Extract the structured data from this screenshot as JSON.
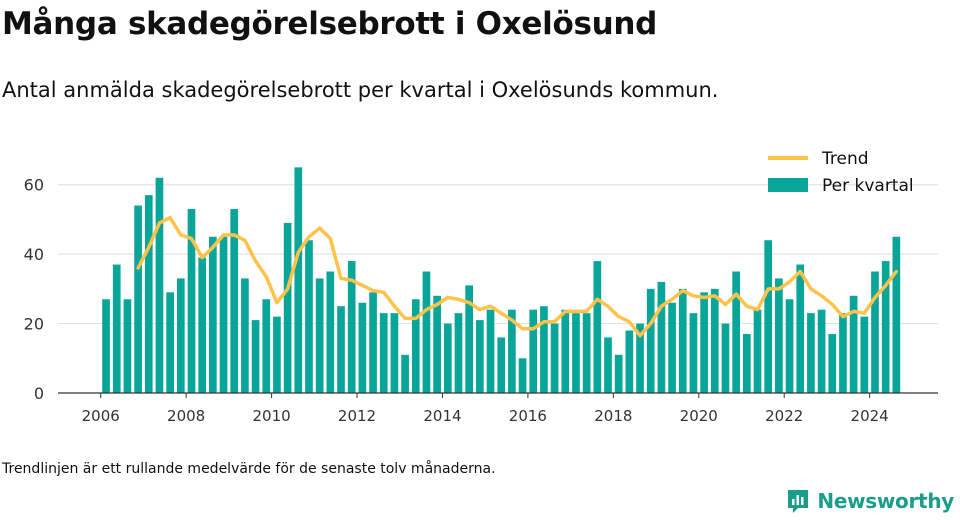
{
  "title": "Många skadegörelsebrott i Oxelösund",
  "subtitle": "Antal anmälda skadegörelsebrott per kvartal i Oxelösunds kommun.",
  "footnote": "Trendlinjen är ett rullande medelvärde för de senaste tolv månaderna.",
  "brand": {
    "name": "Newsworthy",
    "color": "#199e8a"
  },
  "colors": {
    "bar": "#0aa599",
    "trend": "#ffc24a",
    "grid": "#dddddd",
    "axis": "#333333",
    "text": "#333333"
  },
  "chart_data": {
    "type": "bar",
    "x_axis": {
      "type": "time",
      "range": [
        "2005.0",
        "2025.6"
      ],
      "ticks": [
        "2006",
        "2008",
        "2010",
        "2012",
        "2014",
        "2016",
        "2018",
        "2020",
        "2022",
        "2024"
      ]
    },
    "y_axis": {
      "range": [
        0,
        70
      ],
      "ticks": [
        0,
        20,
        40,
        60
      ]
    },
    "grid": true,
    "legend": {
      "placement": "top-right",
      "entries": [
        "Trend",
        "Per kvartal"
      ]
    },
    "categories": [
      "2006 Q1",
      "2006 Q2",
      "2006 Q3",
      "2006 Q4",
      "2007 Q1",
      "2007 Q2",
      "2007 Q3",
      "2007 Q4",
      "2008 Q1",
      "2008 Q2",
      "2008 Q3",
      "2008 Q4",
      "2009 Q1",
      "2009 Q2",
      "2009 Q3",
      "2009 Q4",
      "2010 Q1",
      "2010 Q2",
      "2010 Q3",
      "2010 Q4",
      "2011 Q1",
      "2011 Q2",
      "2011 Q3",
      "2011 Q4",
      "2012 Q1",
      "2012 Q2",
      "2012 Q3",
      "2012 Q4",
      "2013 Q1",
      "2013 Q2",
      "2013 Q3",
      "2013 Q4",
      "2014 Q1",
      "2014 Q2",
      "2014 Q3",
      "2014 Q4",
      "2015 Q1",
      "2015 Q2",
      "2015 Q3",
      "2015 Q4",
      "2016 Q1",
      "2016 Q2",
      "2016 Q3",
      "2016 Q4",
      "2017 Q1",
      "2017 Q2",
      "2017 Q3",
      "2017 Q4",
      "2018 Q1",
      "2018 Q2",
      "2018 Q3",
      "2018 Q4",
      "2019 Q1",
      "2019 Q2",
      "2019 Q3",
      "2019 Q4",
      "2020 Q1",
      "2020 Q2",
      "2020 Q3",
      "2020 Q4",
      "2021 Q1",
      "2021 Q2",
      "2021 Q3",
      "2021 Q4",
      "2022 Q1",
      "2022 Q2",
      "2022 Q3",
      "2022 Q4",
      "2023 Q1",
      "2023 Q2",
      "2023 Q3",
      "2023 Q4",
      "2024 Q1",
      "2024 Q2",
      "2024 Q3"
    ],
    "series": [
      {
        "name": "Per kvartal",
        "type": "bar",
        "values": [
          27,
          37,
          27,
          54,
          57,
          62,
          29,
          33,
          53,
          39,
          45,
          45,
          53,
          33,
          21,
          27,
          22,
          49,
          65,
          44,
          33,
          35,
          25,
          38,
          26,
          29,
          23,
          23,
          11,
          27,
          35,
          28,
          20,
          23,
          31,
          21,
          24,
          16,
          24,
          10,
          24,
          25,
          20,
          24,
          23,
          23,
          38,
          16,
          11,
          18,
          20,
          30,
          32,
          26,
          30,
          23,
          29,
          30,
          20,
          35,
          17,
          24,
          44,
          33,
          27,
          37,
          23,
          24,
          17,
          23,
          28,
          22,
          35,
          38,
          45
        ]
      },
      {
        "name": "Trend",
        "type": "line",
        "values": [
          null,
          null,
          null,
          36,
          42,
          49,
          50.5,
          45.5,
          44.5,
          39,
          42,
          45.5,
          45.5,
          44,
          38,
          33.5,
          26,
          30,
          40.5,
          45,
          47.5,
          44.5,
          33,
          32.5,
          31,
          29.5,
          29,
          25,
          21.5,
          21.5,
          24,
          25.5,
          27.5,
          27,
          26,
          24,
          25,
          23,
          21,
          18.5,
          18.5,
          20.5,
          20.5,
          23.5,
          23.5,
          23.5,
          27,
          25,
          22,
          20.5,
          16.5,
          20,
          25,
          27,
          29.5,
          28,
          27.5,
          28,
          25.5,
          28.5,
          25,
          24,
          30,
          30,
          32,
          35,
          30,
          28,
          25.5,
          22,
          23.5,
          23,
          27.5,
          31,
          35
        ]
      }
    ]
  }
}
